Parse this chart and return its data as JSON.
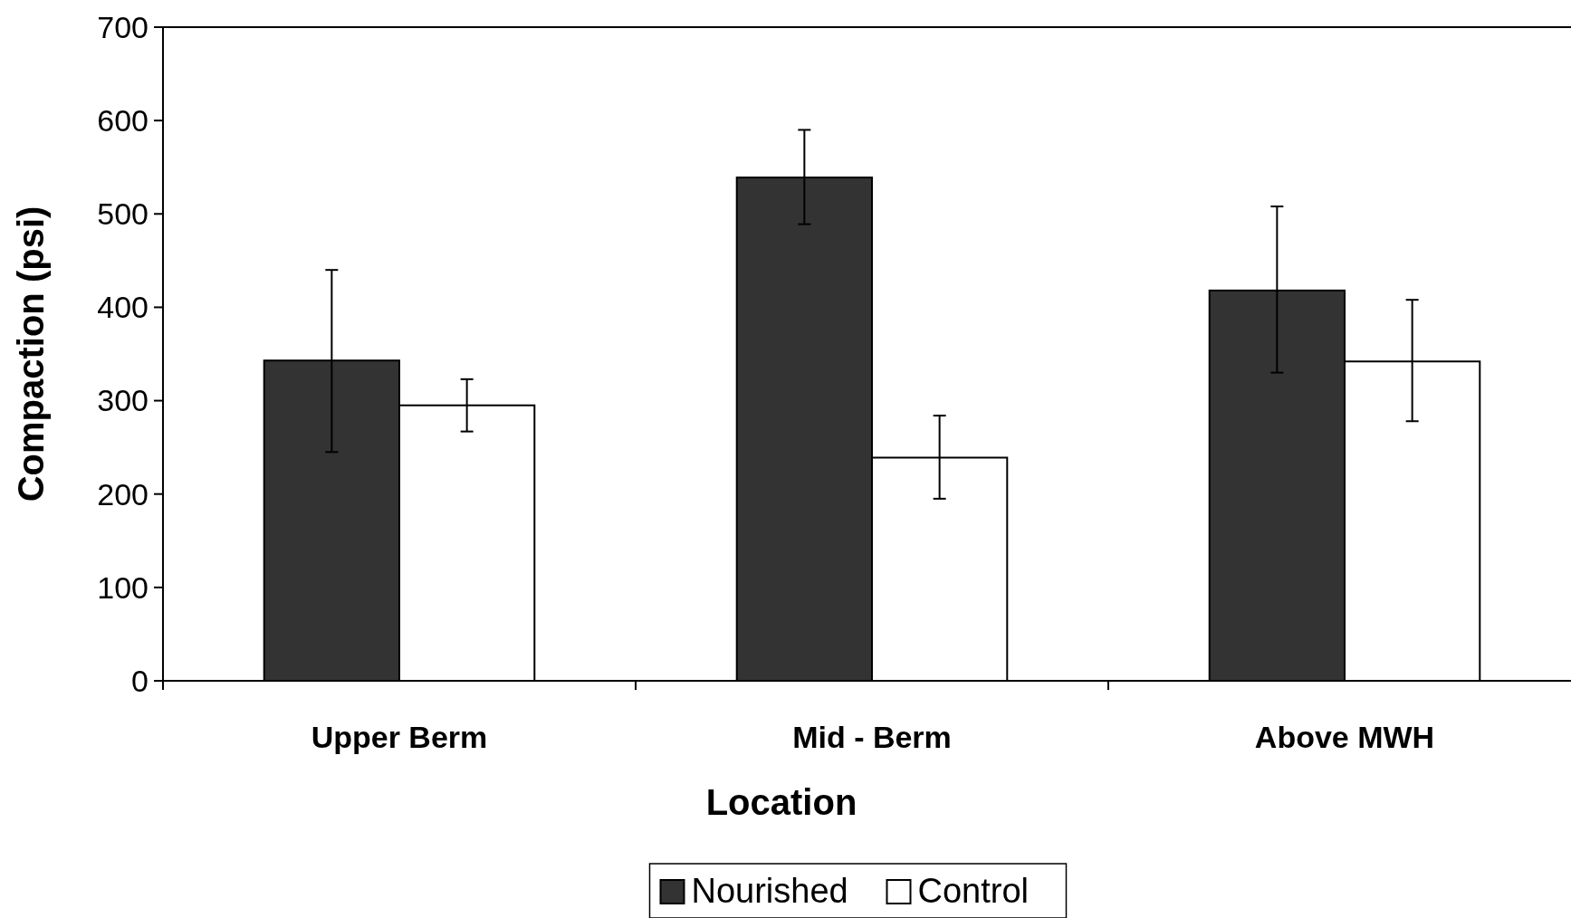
{
  "chart_data": {
    "type": "bar",
    "xlabel": "Location",
    "ylabel": "Compaction (psi)",
    "categories": [
      "Upper Berm",
      "Mid - Berm",
      "Above MWH"
    ],
    "series": [
      {
        "name": "Nourished",
        "color": "#333333",
        "values": [
          343,
          539,
          418
        ],
        "errors": [
          [
            245,
            440
          ],
          [
            489,
            590
          ],
          [
            330,
            508
          ]
        ]
      },
      {
        "name": "Control",
        "color": "#ffffff",
        "values": [
          295,
          239,
          342
        ],
        "errors": [
          [
            267,
            323
          ],
          [
            195,
            284
          ],
          [
            278,
            408
          ]
        ]
      }
    ],
    "ylim": [
      0,
      700
    ],
    "yticks": [
      0,
      100,
      200,
      300,
      400,
      500,
      600,
      700
    ],
    "grid": false,
    "legend": "bottom"
  }
}
